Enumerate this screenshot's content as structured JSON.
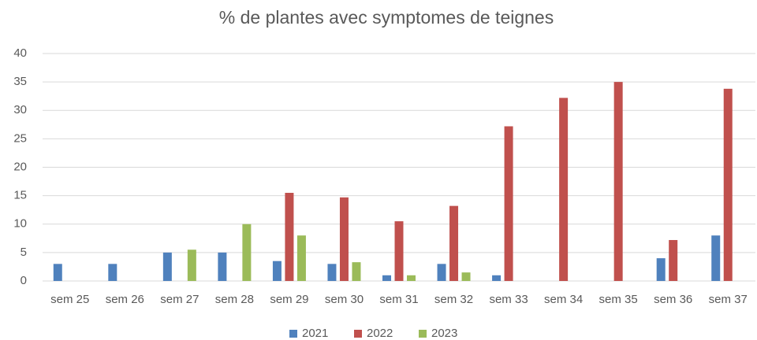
{
  "chart_data": {
    "type": "bar",
    "title": "% de plantes avec symptomes de teignes",
    "categories": [
      "sem 25",
      "sem 26",
      "sem 27",
      "sem 28",
      "sem 29",
      "sem 30",
      "sem 31",
      "sem 32",
      "sem 33",
      "sem 34",
      "sem 35",
      "sem 36",
      "sem 37"
    ],
    "series": [
      {
        "name": "2021",
        "color": "#4f81bd",
        "values": [
          3,
          3,
          5,
          5,
          3.5,
          3,
          1,
          3,
          1,
          null,
          null,
          4,
          8
        ]
      },
      {
        "name": "2022",
        "color": "#c0504d",
        "values": [
          null,
          null,
          null,
          null,
          15.5,
          14.7,
          10.5,
          13.2,
          27.2,
          32.2,
          35,
          7.2,
          33.8
        ]
      },
      {
        "name": "2023",
        "color": "#9bbb59",
        "values": [
          null,
          null,
          5.5,
          10,
          8,
          3.3,
          1,
          1.5,
          null,
          null,
          null,
          null,
          null
        ]
      }
    ],
    "ylim": [
      0,
      40
    ],
    "yticks": [
      0,
      5,
      10,
      15,
      20,
      25,
      30,
      35,
      40
    ],
    "grid": true,
    "legend": "bottom"
  }
}
